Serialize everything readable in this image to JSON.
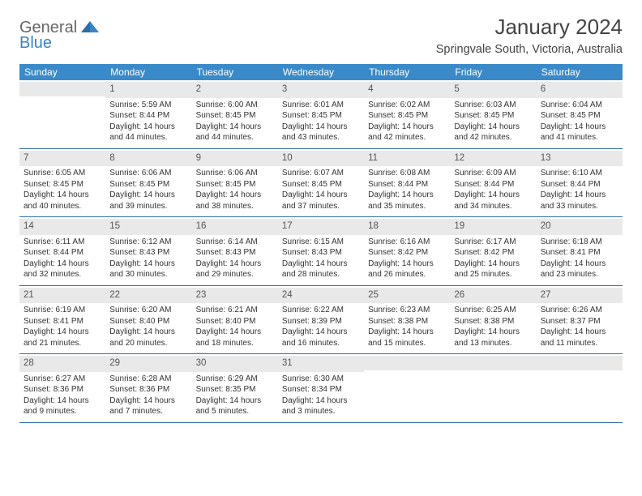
{
  "logo": {
    "line1": "General",
    "line2": "Blue"
  },
  "title": "January 2024",
  "subtitle": "Springvale South, Victoria, Australia",
  "colors": {
    "header_bg": "#3a8ac9",
    "header_text": "#ffffff",
    "daynum_bg": "#e9e9e9",
    "row_divider": "#2a6fa3",
    "body_text": "#333333",
    "logo_blue": "#3b82c4",
    "page_bg": "#ffffff"
  },
  "dow": [
    "Sunday",
    "Monday",
    "Tuesday",
    "Wednesday",
    "Thursday",
    "Friday",
    "Saturday"
  ],
  "weeks": [
    [
      {
        "n": "",
        "sr": "",
        "ss": "",
        "dl": ""
      },
      {
        "n": "1",
        "sr": "Sunrise: 5:59 AM",
        "ss": "Sunset: 8:44 PM",
        "dl": "Daylight: 14 hours and 44 minutes."
      },
      {
        "n": "2",
        "sr": "Sunrise: 6:00 AM",
        "ss": "Sunset: 8:45 PM",
        "dl": "Daylight: 14 hours and 44 minutes."
      },
      {
        "n": "3",
        "sr": "Sunrise: 6:01 AM",
        "ss": "Sunset: 8:45 PM",
        "dl": "Daylight: 14 hours and 43 minutes."
      },
      {
        "n": "4",
        "sr": "Sunrise: 6:02 AM",
        "ss": "Sunset: 8:45 PM",
        "dl": "Daylight: 14 hours and 42 minutes."
      },
      {
        "n": "5",
        "sr": "Sunrise: 6:03 AM",
        "ss": "Sunset: 8:45 PM",
        "dl": "Daylight: 14 hours and 42 minutes."
      },
      {
        "n": "6",
        "sr": "Sunrise: 6:04 AM",
        "ss": "Sunset: 8:45 PM",
        "dl": "Daylight: 14 hours and 41 minutes."
      }
    ],
    [
      {
        "n": "7",
        "sr": "Sunrise: 6:05 AM",
        "ss": "Sunset: 8:45 PM",
        "dl": "Daylight: 14 hours and 40 minutes."
      },
      {
        "n": "8",
        "sr": "Sunrise: 6:06 AM",
        "ss": "Sunset: 8:45 PM",
        "dl": "Daylight: 14 hours and 39 minutes."
      },
      {
        "n": "9",
        "sr": "Sunrise: 6:06 AM",
        "ss": "Sunset: 8:45 PM",
        "dl": "Daylight: 14 hours and 38 minutes."
      },
      {
        "n": "10",
        "sr": "Sunrise: 6:07 AM",
        "ss": "Sunset: 8:45 PM",
        "dl": "Daylight: 14 hours and 37 minutes."
      },
      {
        "n": "11",
        "sr": "Sunrise: 6:08 AM",
        "ss": "Sunset: 8:44 PM",
        "dl": "Daylight: 14 hours and 35 minutes."
      },
      {
        "n": "12",
        "sr": "Sunrise: 6:09 AM",
        "ss": "Sunset: 8:44 PM",
        "dl": "Daylight: 14 hours and 34 minutes."
      },
      {
        "n": "13",
        "sr": "Sunrise: 6:10 AM",
        "ss": "Sunset: 8:44 PM",
        "dl": "Daylight: 14 hours and 33 minutes."
      }
    ],
    [
      {
        "n": "14",
        "sr": "Sunrise: 6:11 AM",
        "ss": "Sunset: 8:44 PM",
        "dl": "Daylight: 14 hours and 32 minutes."
      },
      {
        "n": "15",
        "sr": "Sunrise: 6:12 AM",
        "ss": "Sunset: 8:43 PM",
        "dl": "Daylight: 14 hours and 30 minutes."
      },
      {
        "n": "16",
        "sr": "Sunrise: 6:14 AM",
        "ss": "Sunset: 8:43 PM",
        "dl": "Daylight: 14 hours and 29 minutes."
      },
      {
        "n": "17",
        "sr": "Sunrise: 6:15 AM",
        "ss": "Sunset: 8:43 PM",
        "dl": "Daylight: 14 hours and 28 minutes."
      },
      {
        "n": "18",
        "sr": "Sunrise: 6:16 AM",
        "ss": "Sunset: 8:42 PM",
        "dl": "Daylight: 14 hours and 26 minutes."
      },
      {
        "n": "19",
        "sr": "Sunrise: 6:17 AM",
        "ss": "Sunset: 8:42 PM",
        "dl": "Daylight: 14 hours and 25 minutes."
      },
      {
        "n": "20",
        "sr": "Sunrise: 6:18 AM",
        "ss": "Sunset: 8:41 PM",
        "dl": "Daylight: 14 hours and 23 minutes."
      }
    ],
    [
      {
        "n": "21",
        "sr": "Sunrise: 6:19 AM",
        "ss": "Sunset: 8:41 PM",
        "dl": "Daylight: 14 hours and 21 minutes."
      },
      {
        "n": "22",
        "sr": "Sunrise: 6:20 AM",
        "ss": "Sunset: 8:40 PM",
        "dl": "Daylight: 14 hours and 20 minutes."
      },
      {
        "n": "23",
        "sr": "Sunrise: 6:21 AM",
        "ss": "Sunset: 8:40 PM",
        "dl": "Daylight: 14 hours and 18 minutes."
      },
      {
        "n": "24",
        "sr": "Sunrise: 6:22 AM",
        "ss": "Sunset: 8:39 PM",
        "dl": "Daylight: 14 hours and 16 minutes."
      },
      {
        "n": "25",
        "sr": "Sunrise: 6:23 AM",
        "ss": "Sunset: 8:38 PM",
        "dl": "Daylight: 14 hours and 15 minutes."
      },
      {
        "n": "26",
        "sr": "Sunrise: 6:25 AM",
        "ss": "Sunset: 8:38 PM",
        "dl": "Daylight: 14 hours and 13 minutes."
      },
      {
        "n": "27",
        "sr": "Sunrise: 6:26 AM",
        "ss": "Sunset: 8:37 PM",
        "dl": "Daylight: 14 hours and 11 minutes."
      }
    ],
    [
      {
        "n": "28",
        "sr": "Sunrise: 6:27 AM",
        "ss": "Sunset: 8:36 PM",
        "dl": "Daylight: 14 hours and 9 minutes."
      },
      {
        "n": "29",
        "sr": "Sunrise: 6:28 AM",
        "ss": "Sunset: 8:36 PM",
        "dl": "Daylight: 14 hours and 7 minutes."
      },
      {
        "n": "30",
        "sr": "Sunrise: 6:29 AM",
        "ss": "Sunset: 8:35 PM",
        "dl": "Daylight: 14 hours and 5 minutes."
      },
      {
        "n": "31",
        "sr": "Sunrise: 6:30 AM",
        "ss": "Sunset: 8:34 PM",
        "dl": "Daylight: 14 hours and 3 minutes."
      },
      {
        "n": "",
        "sr": "",
        "ss": "",
        "dl": ""
      },
      {
        "n": "",
        "sr": "",
        "ss": "",
        "dl": ""
      },
      {
        "n": "",
        "sr": "",
        "ss": "",
        "dl": ""
      }
    ]
  ]
}
